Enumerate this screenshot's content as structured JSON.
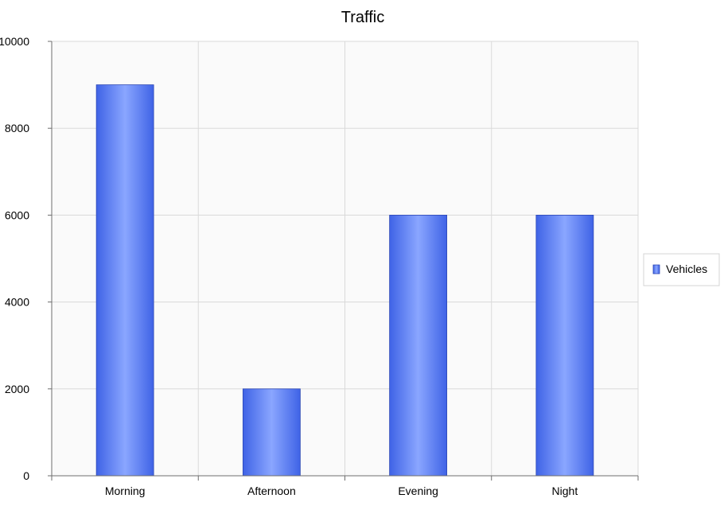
{
  "chart_data": {
    "type": "bar",
    "title": "Traffic",
    "xlabel": "",
    "ylabel": "",
    "categories": [
      "Morning",
      "Afternoon",
      "Evening",
      "Night"
    ],
    "series": [
      {
        "name": "Vehicles",
        "values": [
          9000,
          2000,
          6000,
          6000
        ]
      }
    ],
    "ylim": [
      0,
      10000
    ],
    "yticks": [
      0,
      2000,
      4000,
      6000,
      8000,
      10000
    ],
    "grid": true,
    "legend_position": "right",
    "colors": {
      "bar_dark": "#3f63e6",
      "bar_light": "#8aa6ff",
      "bar_stroke": "#2c47b5",
      "plot_bg": "#fafafa",
      "grid": "#d9d9d9",
      "axis": "#6e6e6e"
    }
  }
}
